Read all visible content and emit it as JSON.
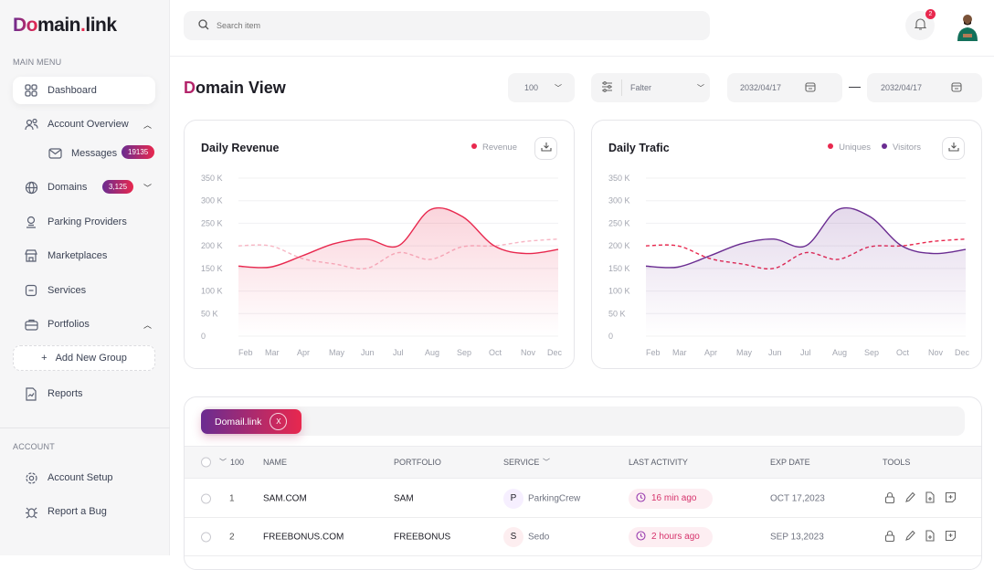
{
  "brand": {
    "logo_prefix": "Do",
    "logo_rest": "main",
    "logo_dot": ".",
    "logo_suffix": "link"
  },
  "sidebar": {
    "main_menu_label": "MAIN MENU",
    "account_label": "ACCOUNT",
    "items": [
      {
        "label": "Dashboard",
        "icon": "grid-icon"
      },
      {
        "label": "Account Overview",
        "icon": "users-icon"
      },
      {
        "label": "Messages",
        "icon": "mail-icon",
        "badge": "19135"
      },
      {
        "label": "Domains",
        "icon": "globe-icon",
        "badge": "3,125"
      },
      {
        "label": "Parking Providers",
        "icon": "parking-icon"
      },
      {
        "label": "Marketplaces",
        "icon": "store-icon"
      },
      {
        "label": "Services",
        "icon": "services-icon"
      },
      {
        "label": "Portfolios",
        "icon": "briefcase-icon"
      },
      {
        "label": "Reports",
        "icon": "report-icon"
      }
    ],
    "add_group": "Add New Group",
    "account_items": [
      {
        "label": "Account Setup",
        "icon": "gear-icon"
      },
      {
        "label": "Report a Bug",
        "icon": "bug-icon"
      }
    ]
  },
  "header": {
    "search_placeholder": "Search item",
    "notifications": "2"
  },
  "page": {
    "title_first": "D",
    "title_rest": "omain View",
    "count_select": "100",
    "filter_placeholder": "Falter",
    "date_from": "2032/04/17",
    "date_sep": "—",
    "date_to": "2032/04/17"
  },
  "colors": {
    "accent_red": "#e8284e",
    "accent_purple": "#6a2c91"
  },
  "chart_data": [
    {
      "type": "area",
      "title": "Daily Revenue",
      "categories": [
        "Feb",
        "Mar",
        "Apr",
        "May",
        "Jun",
        "Jul",
        "Aug",
        "Sep",
        "Oct",
        "Nov",
        "Dec"
      ],
      "yticks": [
        "0",
        "50 K",
        "100 K",
        "150 K",
        "200 K",
        "250 K",
        "300 K",
        "350 K"
      ],
      "ylim": [
        0,
        350
      ],
      "grid": true,
      "legend": "top-right",
      "series": [
        {
          "name": "Revenue",
          "color": "#e8284e",
          "style": "solid",
          "values": [
            155,
            153,
            178,
            205,
            215,
            200,
            280,
            265,
            200,
            183,
            192
          ]
        },
        {
          "color": "#f7b6c4",
          "style": "dashed",
          "values": [
            200,
            200,
            172,
            160,
            150,
            185,
            170,
            198,
            200,
            210,
            215
          ]
        }
      ]
    },
    {
      "type": "area",
      "title": "Daily Trafic",
      "categories": [
        "Feb",
        "Mar",
        "Apr",
        "May",
        "Jun",
        "Jul",
        "Aug",
        "Sep",
        "Oct",
        "Nov",
        "Dec"
      ],
      "yticks": [
        "0",
        "50 K",
        "100 K",
        "150 K",
        "200 K",
        "250 K",
        "300 K",
        "350 K"
      ],
      "ylim": [
        0,
        350
      ],
      "grid": true,
      "legend": "top-right",
      "series": [
        {
          "name": "Visitors",
          "color": "#6a2c91",
          "style": "solid",
          "values": [
            155,
            153,
            178,
            205,
            215,
            200,
            280,
            265,
            200,
            183,
            192
          ]
        },
        {
          "name": "Uniques",
          "color": "#e8284e",
          "style": "dashed",
          "values": [
            200,
            200,
            172,
            160,
            150,
            185,
            170,
            198,
            200,
            210,
            215
          ]
        }
      ]
    }
  ],
  "table": {
    "chip": "Domail.link",
    "chip_close": "X",
    "count": "100",
    "headers": [
      "NAME",
      "PORTFOLIO",
      "SERVICE",
      "LAST ACTIVITY",
      "EXP DATE",
      "TOOLS"
    ],
    "rows": [
      {
        "num": "1",
        "name": "SAM.COM",
        "portfolio": "SAM",
        "service_initial": "P",
        "service": "ParkingCrew",
        "activity": "16 min ago",
        "exp": "OCT 17,2023"
      },
      {
        "num": "2",
        "name": "FREEBONUS.COM",
        "portfolio": "FREEBONUS",
        "service_initial": "S",
        "service": "Sedo",
        "activity": "2 hours ago",
        "exp": "SEP 13,2023"
      }
    ]
  }
}
